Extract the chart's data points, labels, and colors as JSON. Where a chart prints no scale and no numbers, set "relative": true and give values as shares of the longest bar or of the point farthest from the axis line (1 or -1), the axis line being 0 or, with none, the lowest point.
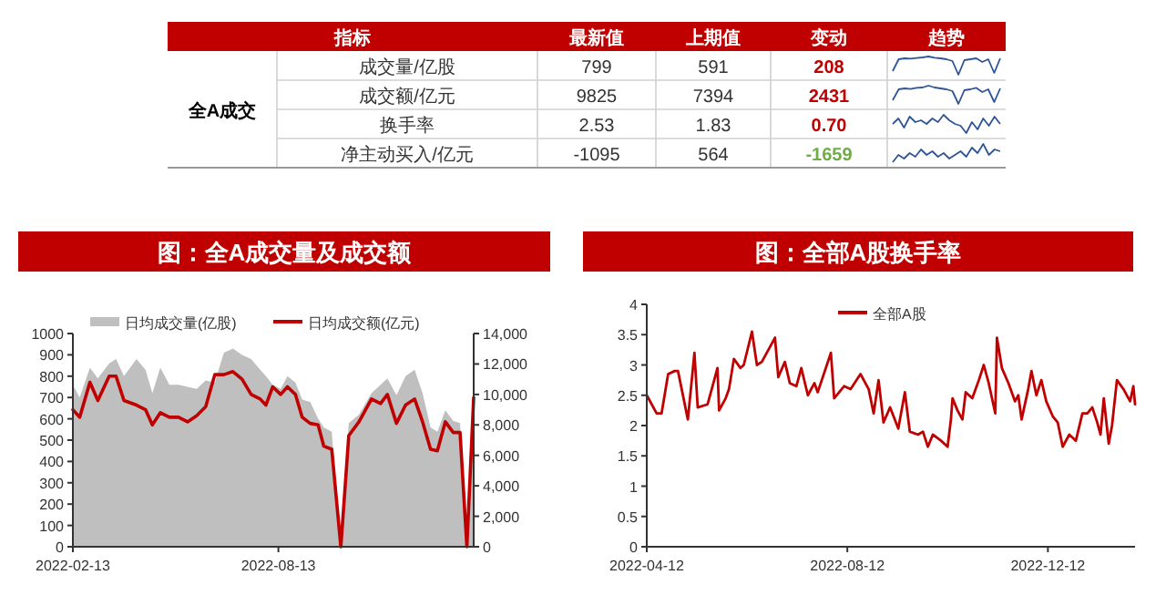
{
  "chart_data": [
    {
      "type": "other",
      "annotations": [
        "指标",
        "最新值",
        "上期值",
        "变动",
        "趋势",
        "全A成交",
        "成交量/亿股",
        "799",
        "591",
        "208",
        "成交额/亿元",
        "9825",
        "7394",
        "2431",
        "换手率",
        "2.53",
        "1.83",
        "0.70",
        "净主动买入/亿元",
        "-1095",
        "564",
        "-1659"
      ],
      "colors": [
        "#c00000",
        "#c00000",
        "#c00000",
        "#70ad47"
      ]
    },
    {
      "type": "line",
      "relative": true,
      "categories": [
        null,
        null,
        null,
        null,
        null,
        null,
        null,
        null,
        null,
        null,
        null,
        null,
        null,
        null,
        null,
        null,
        null,
        null,
        null
      ],
      "series": [
        {
          "color": "#2f5597",
          "values": [
            0.2,
            0.85,
            0.9,
            0.88,
            0.92,
            0.95,
            1,
            0.93,
            0.9,
            0.85,
            0.75,
            0,
            0.8,
            0.85,
            0.9,
            0.7,
            0.85,
            0.1,
            0.9
          ]
        }
      ]
    },
    {
      "type": "line",
      "relative": true,
      "categories": [
        null,
        null,
        null,
        null,
        null,
        null,
        null,
        null,
        null,
        null,
        null,
        null,
        null,
        null,
        null,
        null,
        null,
        null,
        null
      ],
      "series": [
        {
          "color": "#2f5597",
          "values": [
            0.2,
            0.8,
            0.85,
            0.82,
            0.88,
            0.9,
            1,
            0.9,
            0.85,
            0.8,
            0.7,
            0,
            0.75,
            0.8,
            0.88,
            0.65,
            0.8,
            0.1,
            0.85
          ]
        }
      ]
    },
    {
      "type": "line",
      "relative": true,
      "categories": [
        null,
        null,
        null,
        null,
        null,
        null,
        null,
        null,
        null,
        null,
        null,
        null,
        null,
        null,
        null,
        null,
        null,
        null,
        null,
        null
      ],
      "series": [
        {
          "color": "#2f5597",
          "values": [
            0.5,
            0.8,
            0.3,
            0.9,
            0.6,
            0.7,
            0.5,
            0.8,
            0.6,
            1,
            0.7,
            0.5,
            0.4,
            0,
            0.6,
            0.2,
            0.8,
            0.4,
            0.9,
            0.5
          ]
        }
      ]
    },
    {
      "type": "line",
      "relative": true,
      "categories": [
        null,
        null,
        null,
        null,
        null,
        null,
        null,
        null,
        null,
        null,
        null,
        null,
        null,
        null,
        null,
        null,
        null,
        null,
        null,
        null
      ],
      "series": [
        {
          "color": "#2f5597",
          "values": [
            0,
            0.4,
            0.2,
            0.5,
            0.3,
            0.7,
            0.4,
            0.6,
            0.3,
            0.5,
            0.2,
            0.4,
            0.6,
            0.3,
            0.8,
            0.5,
            1,
            0.4,
            0.7,
            0.6
          ]
        }
      ]
    },
    {
      "type": "area",
      "title": "图：全A成交量及成交额",
      "legend": "top",
      "x": [
        "2022-02-13",
        "2022-02-19",
        "2022-02-28",
        "2022-03-07",
        "2022-03-17",
        "2022-03-23",
        "2022-03-30",
        "2022-04-10",
        "2022-04-18",
        "2022-04-24",
        "2022-05-01",
        "2022-05-09",
        "2022-05-17",
        "2022-05-25",
        "2022-06-02",
        "2022-06-10",
        "2022-06-18",
        "2022-06-26",
        "2022-07-04",
        "2022-07-12",
        "2022-07-20",
        "2022-07-28",
        "2022-08-02",
        "2022-08-08",
        "2022-08-15",
        "2022-08-21",
        "2022-08-28",
        "2022-09-03",
        "2022-09-10",
        "2022-09-17",
        "2022-09-22",
        "2022-09-29",
        "2022-10-07",
        "2022-10-14",
        "2022-10-23",
        "2022-11-03",
        "2022-11-11",
        "2022-11-17",
        "2022-11-25",
        "2022-12-03",
        "2022-12-11",
        "2022-12-18",
        "2022-12-25",
        "2022-12-31",
        "2023-01-07",
        "2023-01-14",
        "2023-01-20",
        "2023-01-26",
        "2023-02-01"
      ],
      "xlim": [
        "2022-02-13",
        "2023-02-01"
      ],
      "xticks": [
        "2022-02-13",
        "2022-08-13"
      ],
      "ylim": [
        0,
        1000
      ],
      "yticks": [
        0,
        100,
        200,
        300,
        400,
        500,
        600,
        700,
        800,
        900,
        1000
      ],
      "y2lim": [
        0,
        14000
      ],
      "y2ticks": [
        0,
        {
          "value": 2000,
          "label": "2,000"
        },
        {
          "value": 4000,
          "label": "4,000"
        },
        {
          "value": 6000,
          "label": "6,000"
        },
        {
          "value": 8000,
          "label": "8,000"
        },
        {
          "value": 10000,
          "label": "10,000"
        },
        {
          "value": 12000,
          "label": "12,000"
        },
        {
          "value": 14000,
          "label": "14,000"
        }
      ],
      "series": [
        {
          "name": "日均成交量(亿股)",
          "type": "area",
          "color": "#bfbfbf",
          "values": [
            760,
            700,
            840,
            790,
            860,
            880,
            800,
            880,
            830,
            720,
            840,
            760,
            760,
            750,
            740,
            780,
            770,
            910,
            930,
            900,
            880,
            830,
            800,
            760,
            740,
            800,
            770,
            690,
            680,
            600,
            560,
            540,
            0,
            580,
            620,
            720,
            760,
            790,
            710,
            800,
            830,
            720,
            560,
            540,
            640,
            590,
            580,
            0,
            700
          ]
        },
        {
          "name": "日均成交额(亿元)",
          "type": "line",
          "axis": "y2",
          "color": "#c00000",
          "values": [
            9000,
            8500,
            10800,
            9600,
            11200,
            11200,
            9600,
            9300,
            9000,
            8000,
            8800,
            8500,
            8500,
            8200,
            8600,
            9200,
            11300,
            11300,
            11500,
            11000,
            10000,
            9700,
            9300,
            10500,
            10000,
            10500,
            10000,
            8500,
            8100,
            8000,
            6600,
            6400,
            0,
            7300,
            8200,
            9700,
            9400,
            10000,
            8100,
            9300,
            9700,
            8200,
            6400,
            6300,
            8200,
            7500,
            7500,
            0,
            9800
          ]
        }
      ]
    },
    {
      "type": "line",
      "title": "图：全部A股换手率",
      "legend": "top",
      "x": [
        "2022-04-12",
        "2022-04-18",
        "2022-04-21",
        "2022-04-25",
        "2022-04-29",
        "2022-05-01",
        "2022-05-07",
        "2022-05-11",
        "2022-05-13",
        "2022-05-19",
        "2022-05-22",
        "2022-05-25",
        "2022-05-26",
        "2022-05-30",
        "2022-06-01",
        "2022-06-04",
        "2022-06-08",
        "2022-06-10",
        "2022-06-15",
        "2022-06-18",
        "2022-06-21",
        "2022-06-25",
        "2022-06-29",
        "2022-07-01",
        "2022-07-05",
        "2022-07-08",
        "2022-07-12",
        "2022-07-15",
        "2022-07-19",
        "2022-07-23",
        "2022-07-25",
        "2022-08-02",
        "2022-08-04",
        "2022-08-10",
        "2022-08-14",
        "2022-08-20",
        "2022-08-25",
        "2022-08-28",
        "2022-08-31",
        "2022-09-03",
        "2022-09-07",
        "2022-09-12",
        "2022-09-16",
        "2022-09-19",
        "2022-09-24",
        "2022-09-27",
        "2022-09-30",
        "2022-10-03",
        "2022-10-08",
        "2022-10-12",
        "2022-10-14",
        "2022-10-15",
        "2022-10-18",
        "2022-10-21",
        "2022-10-23",
        "2022-10-27",
        "2022-10-31",
        "2022-11-03",
        "2022-11-06",
        "2022-11-10",
        "2022-11-11",
        "2022-11-14",
        "2022-11-18",
        "2022-11-22",
        "2022-11-24",
        "2022-11-26",
        "2022-11-30",
        "2022-12-02",
        "2022-12-05",
        "2022-12-08",
        "2022-12-11",
        "2022-12-15",
        "2022-12-18",
        "2022-12-21",
        "2022-12-25",
        "2022-12-29",
        "2023-01-02",
        "2023-01-05",
        "2023-01-08",
        "2023-01-11",
        "2023-01-13",
        "2023-01-15",
        "2023-01-18",
        "2023-01-20",
        "2023-01-23",
        "2023-01-27",
        "2023-01-31",
        "2023-02-02",
        "2023-02-03"
      ],
      "xlim": [
        "2022-04-12",
        "2023-02-03"
      ],
      "xticks": [
        "2022-04-12",
        "2022-08-12",
        "2022-12-12"
      ],
      "ylim": [
        0,
        4
      ],
      "yticks": [
        0,
        0.5,
        1,
        1.5,
        2,
        2.5,
        3,
        3.5,
        4
      ],
      "series": [
        {
          "name": "全部A股",
          "color": "#c00000",
          "values": [
            2.5,
            2.2,
            2.2,
            2.85,
            2.9,
            2.9,
            2.1,
            3.2,
            2.3,
            2.35,
            2.65,
            2.95,
            2.25,
            2.45,
            2.6,
            3.1,
            2.95,
            3.0,
            3.55,
            3.0,
            3.05,
            3.25,
            3.45,
            2.8,
            3.05,
            2.7,
            2.65,
            2.95,
            2.5,
            2.7,
            2.55,
            3.2,
            2.45,
            2.65,
            2.6,
            2.85,
            2.6,
            2.2,
            2.75,
            2.05,
            2.3,
            1.95,
            2.55,
            1.9,
            1.85,
            1.9,
            1.65,
            1.85,
            1.75,
            1.65,
            2.1,
            2.45,
            2.25,
            2.1,
            2.55,
            2.45,
            2.75,
            3.0,
            2.7,
            2.2,
            3.45,
            2.95,
            2.7,
            2.4,
            2.5,
            2.1,
            2.6,
            2.9,
            2.5,
            2.75,
            2.4,
            2.15,
            2.05,
            1.65,
            1.85,
            1.75,
            2.2,
            2.2,
            2.3,
            2.05,
            1.85,
            2.45,
            1.7,
            2.0,
            2.75,
            2.6,
            2.4,
            2.65,
            2.35
          ]
        }
      ]
    }
  ]
}
